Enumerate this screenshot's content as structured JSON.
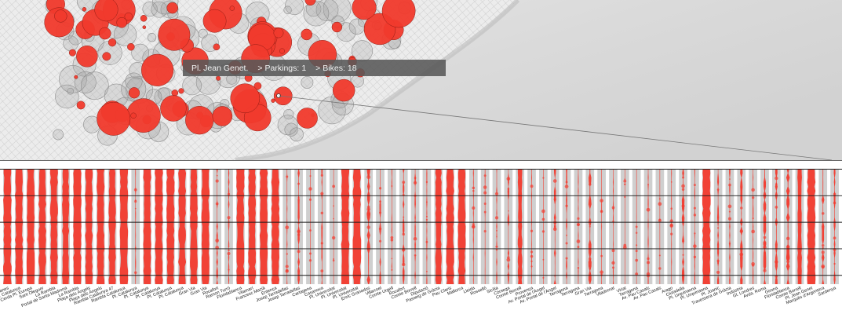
{
  "tooltip": {
    "station": "Pl. Jean Genet.",
    "arrow": ">",
    "parkings_label": "Parkings:",
    "parkings_value": "1",
    "bikes_label": "Bikes:",
    "bikes_value": "18"
  },
  "colors": {
    "bike": "#f23a2d",
    "column_bg": "#cfcfcf",
    "hour_line": "#1a1a1a",
    "station_ring": "#8f8f8f"
  },
  "chart_data": {
    "type": "heatmap",
    "description": "Per-station bike availability strips over time (top = earlier, bottom = later)",
    "hour_rows": 5,
    "stations": [
      {
        "name": "Gran Via Corts Catalanes",
        "level": 0.95
      },
      {
        "name": "Pl. Catalunya",
        "level": 0.9
      },
      {
        "name": "Pl. Cerda Pl. Europa",
        "level": 0.9
      },
      {
        "name": "Sant Oleguer",
        "level": 0.85
      },
      {
        "name": "La Rambla",
        "level": 0.9
      },
      {
        "name": "Portal de Santa Madrona",
        "level": 0.8
      },
      {
        "name": "La Rambla",
        "level": 0.9
      },
      {
        "name": "Plaça dels Àngels",
        "level": 0.85
      },
      {
        "name": "Plaça dels Àngels",
        "level": 0.9
      },
      {
        "name": "Rambla Catalunya 47",
        "level": 0.8
      },
      {
        "name": "Rambla Catalunya",
        "level": 0.95
      },
      {
        "name": "Pl. Catalunya",
        "level": 0.1
      },
      {
        "name": "Pl. Catalunya",
        "level": 0.9
      },
      {
        "name": "Pl. Catalunya",
        "level": 0.95
      },
      {
        "name": "Pl. Catalunya",
        "level": 0.9
      },
      {
        "name": "Pl. Catalunya",
        "level": 0.85
      },
      {
        "name": "Gran Via",
        "level": 0.85
      },
      {
        "name": "Gran Via",
        "level": 0.9
      },
      {
        "name": "Rocafort",
        "level": 0.2
      },
      {
        "name": "Ramon Turró",
        "level": 0.15
      },
      {
        "name": "Floridablanca",
        "level": 0.9
      },
      {
        "name": "Vilamarí",
        "level": 0.85
      },
      {
        "name": "Francesc Macià",
        "level": 0.95
      },
      {
        "name": "Entença",
        "level": 0.9
      },
      {
        "name": "Josep Tarradellas",
        "level": 0.1
      },
      {
        "name": "Josep Tarradellas",
        "level": 0.25
      },
      {
        "name": "Cartagena",
        "level": 0.05
      },
      {
        "name": "Casanova",
        "level": 0.15
      },
      {
        "name": "Pl. Universitat",
        "level": 0.05
      },
      {
        "name": "Pl. Universitat",
        "level": 0.95
      },
      {
        "name": "Pl. Universitat",
        "level": 0.95
      },
      {
        "name": "Enric Granados",
        "level": 0.4
      },
      {
        "name": "Villarroel",
        "level": 0.2
      },
      {
        "name": "Comte Urgell",
        "level": 0.1
      },
      {
        "name": "Rocafort",
        "level": 0.25
      },
      {
        "name": "Comte Borrell",
        "level": 0.15
      },
      {
        "name": "Diputació",
        "level": 0.1
      },
      {
        "name": "Passeig de Gràcia",
        "level": 0.7
      },
      {
        "name": "Pau Claris",
        "level": 0.9
      },
      {
        "name": "Mallorca",
        "level": 0.85
      },
      {
        "name": "Lleida",
        "level": 0.1
      },
      {
        "name": "Rosselló",
        "level": 0.08
      },
      {
        "name": "Sicília",
        "level": 0.12
      },
      {
        "name": "Còrsega",
        "level": 0.2
      },
      {
        "name": "Comte Borrell",
        "level": 0.5
      },
      {
        "name": "Provença",
        "level": 0.08
      },
      {
        "name": "Av. Portal de l'Àngel",
        "level": 0.05
      },
      {
        "name": "Av. Portal de l'Àngel",
        "level": 0.25
      },
      {
        "name": "Tarragona",
        "level": 0.15
      },
      {
        "name": "Tarragona",
        "level": 0.1
      },
      {
        "name": "Gran Via",
        "level": 0.35
      },
      {
        "name": "Tarragona",
        "level": 0.08
      },
      {
        "name": "Viladomat",
        "level": 0.1
      },
      {
        "name": "Viriat",
        "level": 0.05
      },
      {
        "name": "Tarragona",
        "level": 0.06
      },
      {
        "name": "Av. Pau Casals",
        "level": 0.1
      },
      {
        "name": "Av. Pau Casals",
        "level": 0.06
      },
      {
        "name": "Arago",
        "level": 0.08
      },
      {
        "name": "Ciutadella",
        "level": 0.3
      },
      {
        "name": "Pl. Urquinaona",
        "level": 0.1
      },
      {
        "name": "Pl. Urquinaona",
        "level": 0.95
      },
      {
        "name": "Pl. Joanic",
        "level": 0.2
      },
      {
        "name": "Travessera de Gràcia",
        "level": 0.15
      },
      {
        "name": "Indústria",
        "level": 0.3
      },
      {
        "name": "Gl. Londres",
        "level": 0.1
      },
      {
        "name": "Avda. Roma",
        "level": 0.35
      },
      {
        "name": "Girona",
        "level": 0.3
      },
      {
        "name": "Floridablanca",
        "level": 0.4
      },
      {
        "name": "Comte Borrell",
        "level": 0.5
      },
      {
        "name": "Pl. Jean Genet",
        "level": 0.95
      },
      {
        "name": "Marquès d'Argentera",
        "level": 0.3
      },
      {
        "name": "Sardenya",
        "level": 0.2
      }
    ],
    "visible_labels": [
      "Gran Via Corts Catalanes",
      "Pl. Catalunya",
      "Pl. Cerda Pl. Europa",
      "Sant Oleguer",
      "La Rambla",
      "Portal de Santa Madrona",
      "La Rambla",
      "Plaça dels Àngels",
      "Plaça dels Àngels",
      "Rambla Catalunya 47",
      "Rambla Catalunya",
      "Pl. Catalunya",
      "Pl. Catalunya",
      "Pl. Catalunya",
      "Pl. Catalunya",
      "Pl. Catalunya",
      "Gran Via",
      "Gran Via",
      "Rocafort",
      "Ramon Turró",
      "Floridablanca",
      "Vilamarí",
      "Francesc Macià",
      "Entença",
      "Josep Tarradellas",
      "Josep Tarradellas",
      "Cartagena",
      "Casanova",
      "Pl. Universitat",
      "Pl. Universitat",
      "Pl. Universitat",
      "Enric Granados",
      "Villarroel",
      "Comte Urgell",
      "Rocafort",
      "Comte Borrell",
      "Diputació",
      "Passeig de Gràcia",
      "Pau Claris",
      "Mallorca",
      "Lleida",
      "Rosselló",
      "Sicília",
      "Còrsega",
      "Comte Borrell",
      "Provença",
      "Av. Portal de l'Àngel",
      "Av. Portal de l'Àngel",
      "Tarragona",
      "Tarragona",
      "Gran Via",
      "Tarragona",
      "Viladomat",
      "Viriat",
      "Tarragona",
      "Av. Pau Casals",
      "Av. Pau Casals",
      "Arago",
      "Ciutadella",
      "Pl. Urquinaona",
      "Pl. Urquinaona",
      "Pl. Joanic",
      "Travessera de Gràcia",
      "Indústria",
      "Gl. Londres",
      "Avda. Roma",
      "Girona",
      "Floridablanca",
      "Comte Borrell",
      "Pl. Jean Genet",
      "Marquès d'Argentera",
      "Sardenya"
    ]
  }
}
